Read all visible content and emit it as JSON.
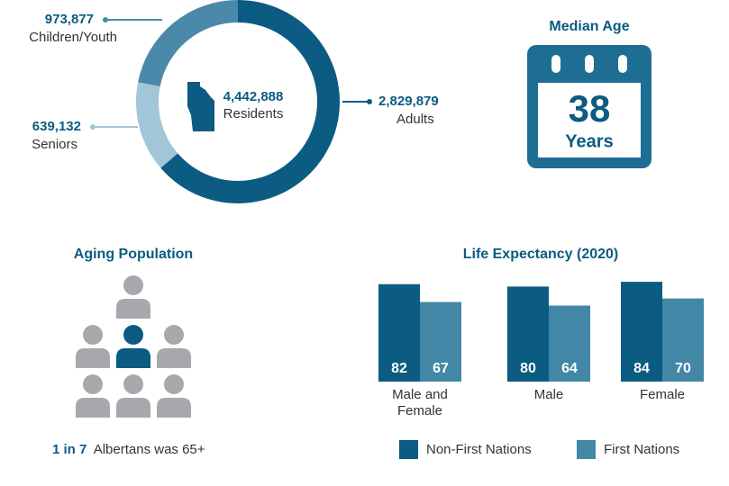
{
  "chart_data": [
    {
      "type": "donut",
      "center_label": "4,442,888",
      "center_text": "Residents",
      "categories": [
        "Adults",
        "Seniors",
        "Children/Youth"
      ],
      "values": [
        2829879,
        639132,
        973877
      ],
      "value_labels": [
        "2,829,879",
        "639,132",
        "973,877"
      ],
      "colors": [
        "#0b5b82",
        "#a2c6d7",
        "#4a89aa"
      ]
    },
    {
      "type": "bar",
      "title": "Life Expectancy (2020)",
      "categories": [
        "Male and Female",
        "Male",
        "Female"
      ],
      "series": [
        {
          "name": "Non-First Nations",
          "color": "#0b5b82",
          "values": [
            82,
            80,
            84
          ]
        },
        {
          "name": "First Nations",
          "color": "#4287a6",
          "values": [
            67,
            64,
            70
          ]
        }
      ]
    }
  ],
  "median_age": {
    "title": "Median Age",
    "value": "38",
    "unit": "Years"
  },
  "aging": {
    "title": "Aging Population",
    "highlight": "1 in 7",
    "text": "Albertans was 65+"
  }
}
